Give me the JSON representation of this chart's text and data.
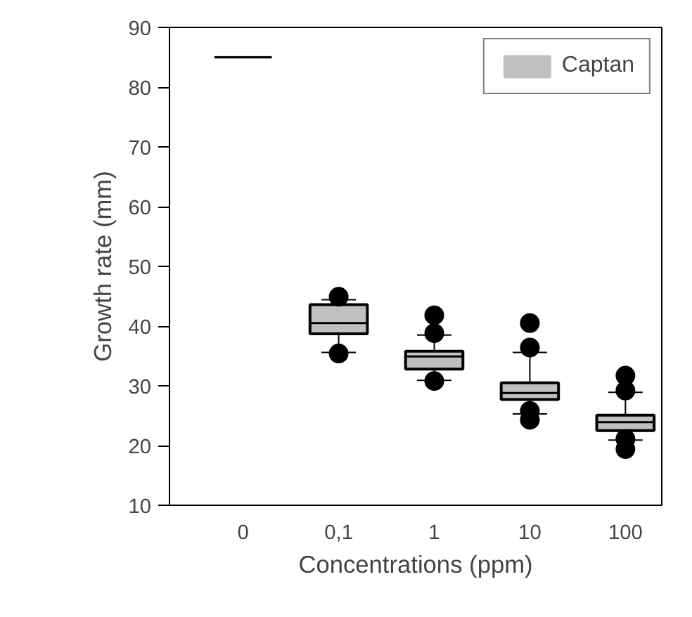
{
  "chart_data": {
    "type": "box",
    "xlabel": "Concentrations (ppm)",
    "ylabel": "Growth rate (mm)",
    "categories": [
      "0",
      "0,1",
      "1",
      "10",
      "100"
    ],
    "ylim": [
      10,
      90
    ],
    "yticks": [
      10,
      20,
      30,
      40,
      50,
      60,
      70,
      80,
      90
    ],
    "grid": false,
    "legend": "top right",
    "series": [
      {
        "name": "Captan",
        "color": "#c0c0c0",
        "boxes": [
          {
            "low": 85,
            "q1": 85,
            "median": 85,
            "q3": 85,
            "high": 85
          },
          {
            "low": 35.6,
            "q1": 38.7,
            "median": 40.5,
            "q3": 43.6,
            "high": 44.4,
            "outliers": [
              44.9,
              35.4
            ]
          },
          {
            "low": 30.9,
            "q1": 32.8,
            "median": 34.9,
            "q3": 35.8,
            "high": 38.5,
            "outliers": [
              41.8,
              38.8,
              30.8
            ]
          },
          {
            "low": 25.3,
            "q1": 27.7,
            "median": 28.8,
            "q3": 30.5,
            "high": 35.6,
            "outliers": [
              40.5,
              36.4,
              25.8,
              24.3
            ]
          },
          {
            "low": 20.9,
            "q1": 22.5,
            "median": 23.9,
            "q3": 25.1,
            "high": 28.9,
            "outliers": [
              31.7,
              29.2,
              21.1,
              19.4
            ]
          }
        ]
      }
    ]
  }
}
